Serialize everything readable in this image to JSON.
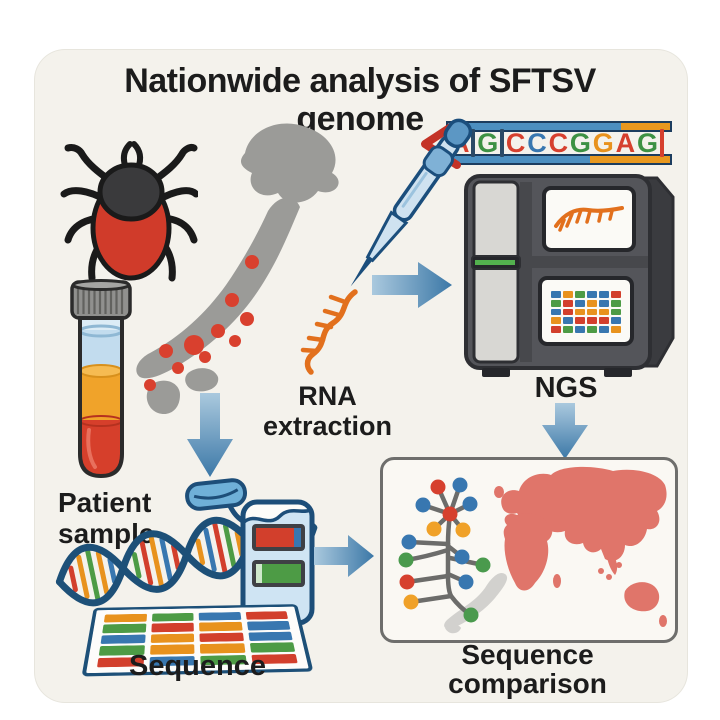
{
  "title": "Nationwide analysis of SFTSV genome",
  "labels": {
    "patient_sample_line1": "Patient",
    "patient_sample_line2": "sample",
    "rna_line1": "RNA",
    "rna_line2": "extraction",
    "ngs": "NGS",
    "sequence": "Sequence",
    "comparison_line1": "Sequence",
    "comparison_line2": "comparison"
  },
  "sequence_ribbon": {
    "letters": [
      {
        "char": "A",
        "color": "#d6402e"
      },
      {
        "char": "|",
        "color": "#2b4a66"
      },
      {
        "char": "G",
        "color": "#3d9143"
      },
      {
        "char": "|",
        "color": "#2b4a66"
      },
      {
        "char": "C",
        "color": "#d6402e"
      },
      {
        "char": "C",
        "color": "#3877b0"
      },
      {
        "char": "C",
        "color": "#d6402e"
      },
      {
        "char": "G",
        "color": "#3d9143"
      },
      {
        "char": "G",
        "color": "#e8921d"
      },
      {
        "char": "A",
        "color": "#d6402e"
      },
      {
        "char": "G",
        "color": "#3d9143"
      },
      {
        "char": "|",
        "color": "#d6402e"
      }
    ]
  },
  "ngs_screen_grid": [
    [
      "#3877b0",
      "#e8921d",
      "#4d9b45",
      "#3877b0",
      "#3877b0",
      "#d23f2c"
    ],
    [
      "#4d9b45",
      "#d23f2c",
      "#3877b0",
      "#e8921d",
      "#3877b0",
      "#4d9b45"
    ],
    [
      "#3877b0",
      "#d23f2c",
      "#e8921d",
      "#e8921d",
      "#e8921d",
      "#4d9b45"
    ],
    [
      "#e8921d",
      "#3877b0",
      "#d23f2c",
      "#d23f2c",
      "#d23f2c",
      "#3877b0"
    ],
    [
      "#d23f2c",
      "#4d9b45",
      "#3877b0",
      "#4d9b45",
      "#3877b0",
      "#e8921d"
    ]
  ],
  "plate_grid": [
    [
      "#e8921d",
      "#4d9b45",
      "#3877b0",
      "#d23f2c"
    ],
    [
      "#4d9b45",
      "#d23f2c",
      "#e8921d",
      "#3877b0"
    ],
    [
      "#3877b0",
      "#e8921d",
      "#d23f2c",
      "#3877b0"
    ],
    [
      "#4d9b45",
      "#e8921d",
      "#e8921d",
      "#4d9b45"
    ],
    [
      "#d23f2c",
      "#3877b0",
      "#4d9b45",
      "#d23f2c"
    ]
  ],
  "palette": {
    "card_bg": "#f4f2ec",
    "title_text": "#1c1c1c",
    "arrow_blue_light": "#aac9de",
    "arrow_blue_dark": "#3c78a7",
    "map_gray": "#9b9b98",
    "case_dot_red": "#d9402e",
    "tick_body_red": "#d03b2a",
    "tick_scutum_gray": "#3a3a3c",
    "blood_red": "#d63f2b",
    "serum_orange": "#f0a32a",
    "plasma_blue": "#c2dcee",
    "pipette_blue": "#2d6da0",
    "rna_orange": "#e2701d",
    "ribbon_band_blue": "#4c8fc0",
    "ribbon_band_orange": "#e8981f",
    "ngs_body_gray": "#54555a",
    "world_map_salmon": "#e0756a",
    "tree_branch_gray": "#6c6c6a",
    "helix_strand_navy": "#1d5078",
    "box_bg": "#faf8f3",
    "box_border": "#6e6e6c"
  }
}
